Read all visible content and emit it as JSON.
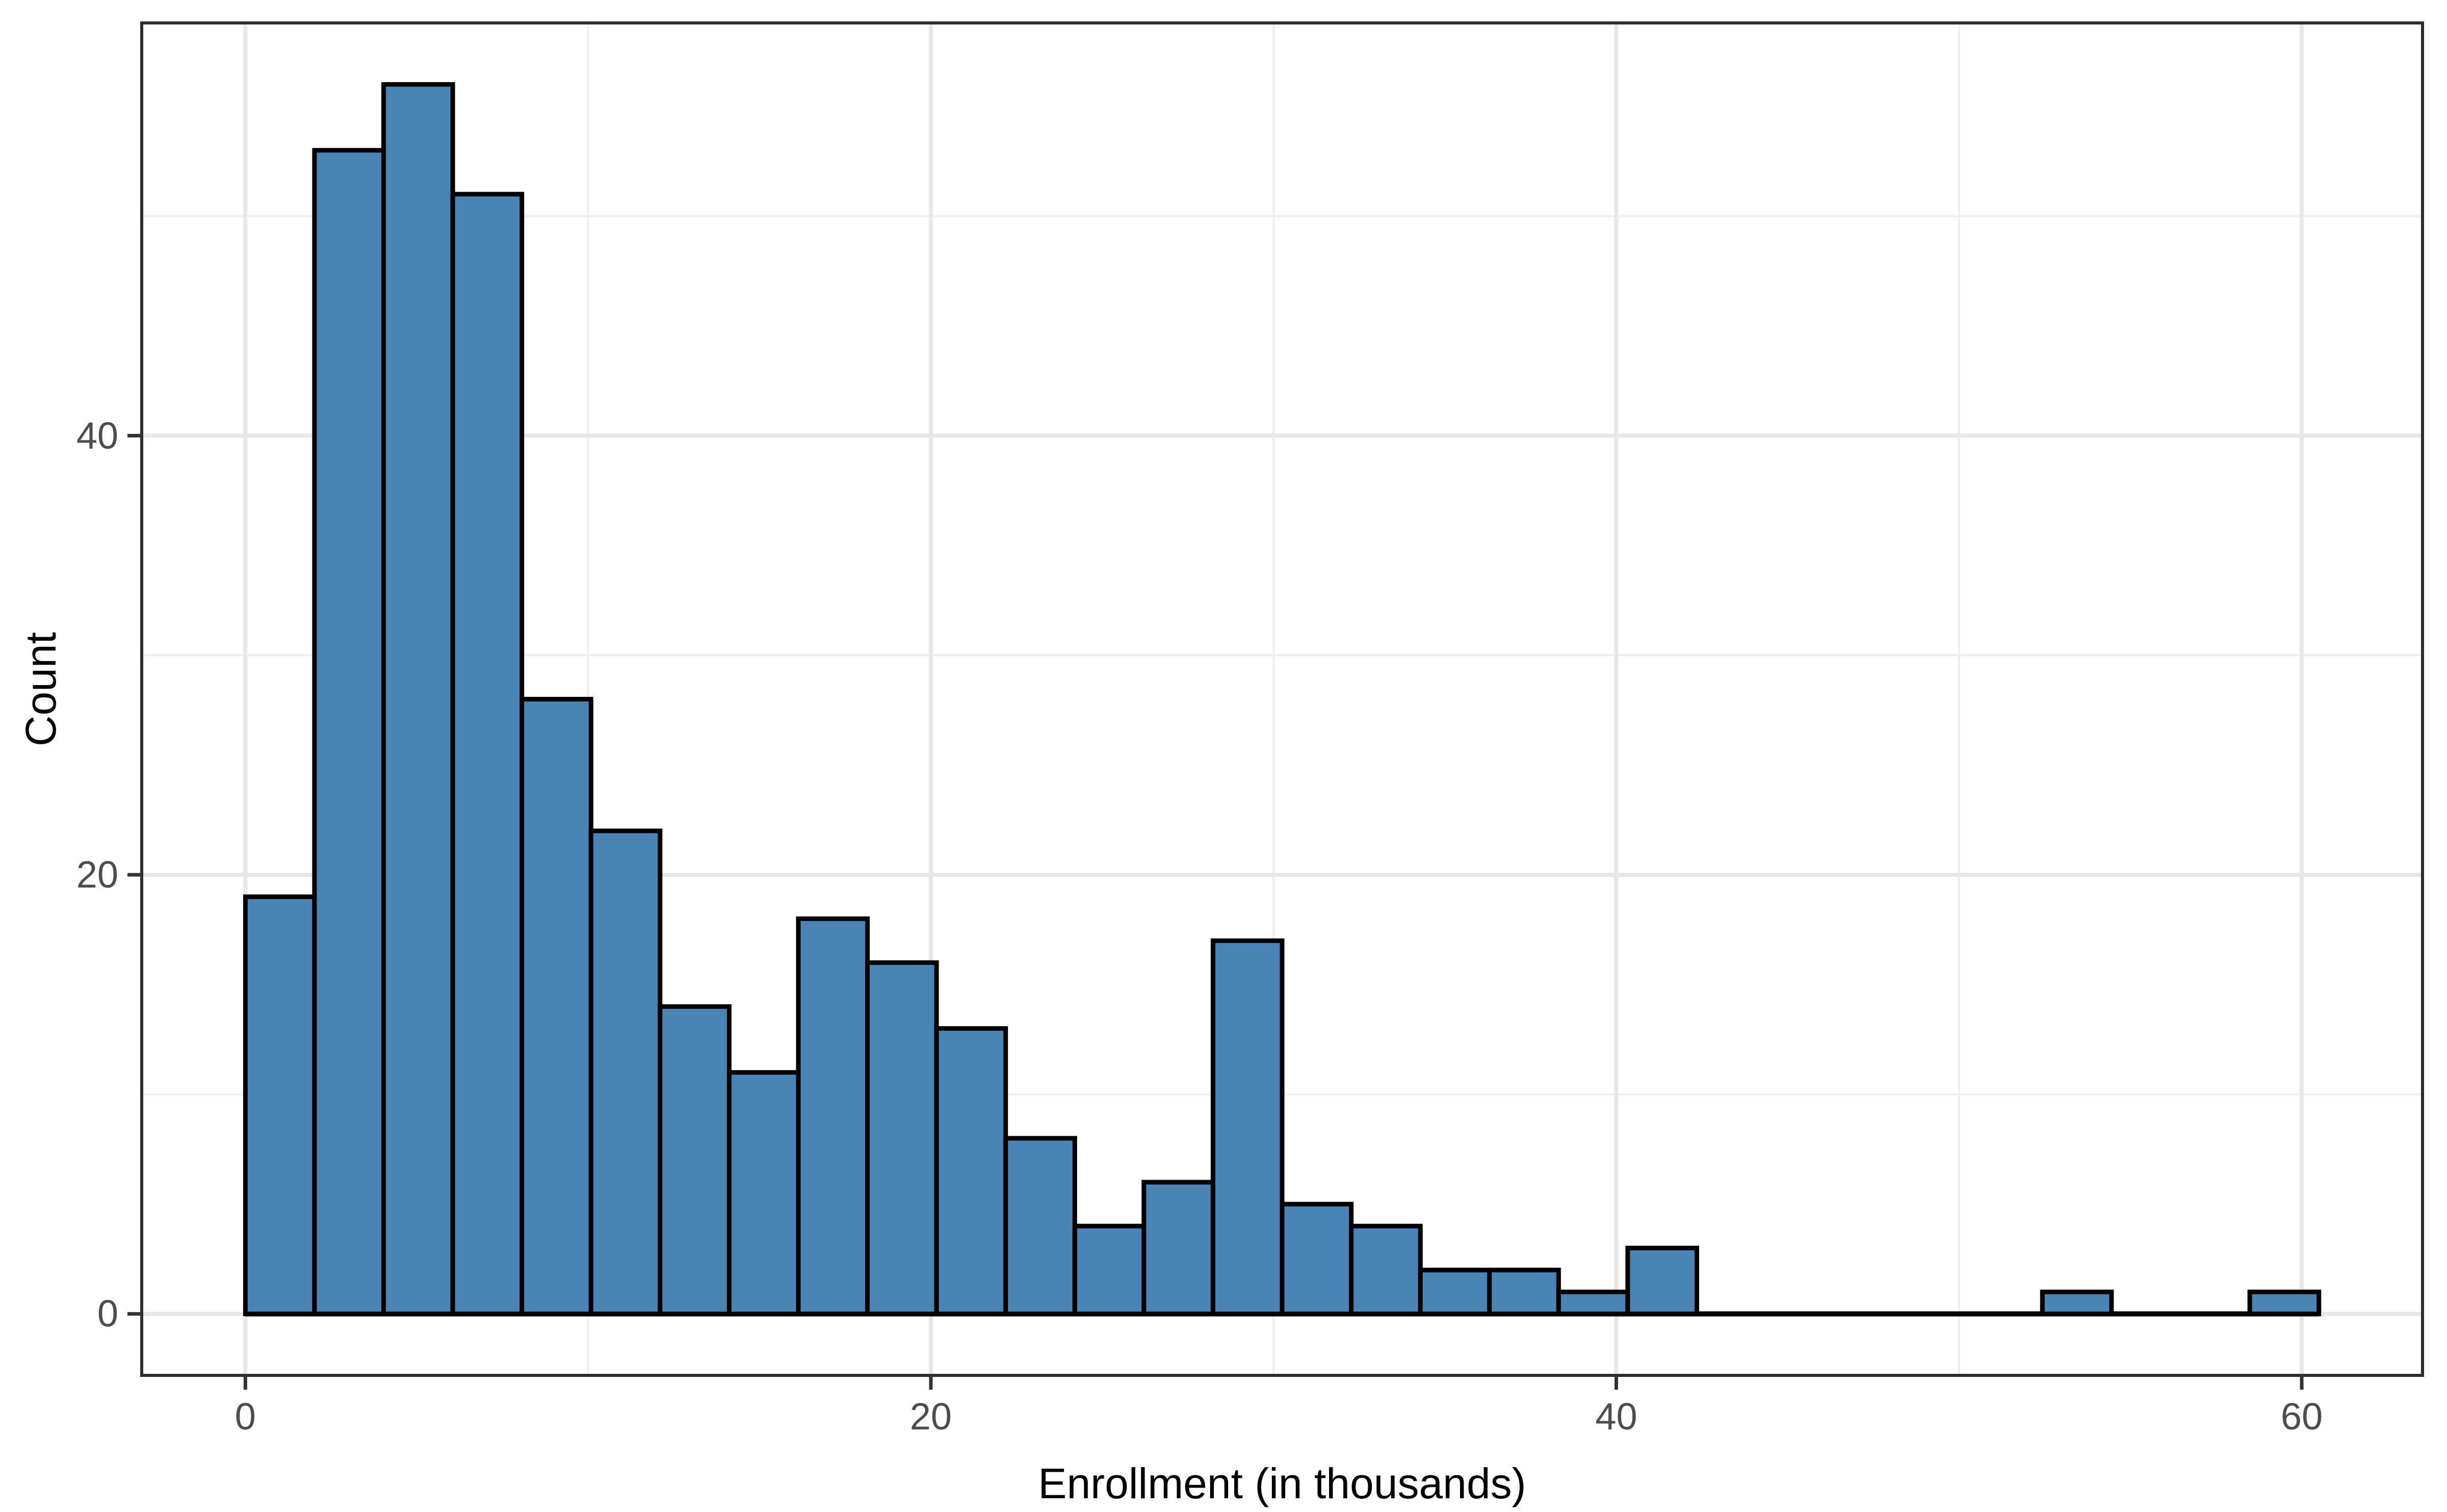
{
  "chart_data": {
    "type": "bar",
    "subtype": "histogram",
    "title": "",
    "xlabel": "Enrollment (in thousands)",
    "ylabel": "Count",
    "bin_start": 0,
    "bin_width": 2.0166667,
    "bin_count": 30,
    "counts": [
      19,
      53,
      56,
      51,
      28,
      22,
      14,
      11,
      18,
      16,
      13,
      8,
      4,
      6,
      17,
      5,
      4,
      2,
      2,
      1,
      3,
      0,
      0,
      0,
      0,
      0,
      1,
      0,
      0,
      1
    ],
    "total_count": 355,
    "x_ticks": [
      {
        "value": 0,
        "label": "0"
      },
      {
        "value": 20,
        "label": "20"
      },
      {
        "value": 40,
        "label": "40"
      },
      {
        "value": 60,
        "label": "60"
      }
    ],
    "y_ticks": [
      {
        "value": 0,
        "label": "0"
      },
      {
        "value": 20,
        "label": "20"
      },
      {
        "value": 40,
        "label": "40"
      }
    ],
    "x_minor_ticks": [
      10,
      30,
      50
    ],
    "y_minor_ticks": [
      10,
      30,
      50
    ],
    "xlim": [
      -3.025,
      63.525
    ],
    "ylim": [
      -2.8,
      58.8
    ],
    "grid": true,
    "legend": "none",
    "colors": {
      "bar_fill": "#4A83B5",
      "bar_stroke": "#000000",
      "baseline": "#000000",
      "panel_border": "#2E2E2E",
      "tick_mark": "#333333",
      "grid_major": "#E7E7E7",
      "grid_minor": "#EFEFEF",
      "tick_label": "#4D4D4D",
      "axis_title": "#000000",
      "background": "#FFFFFF"
    }
  }
}
